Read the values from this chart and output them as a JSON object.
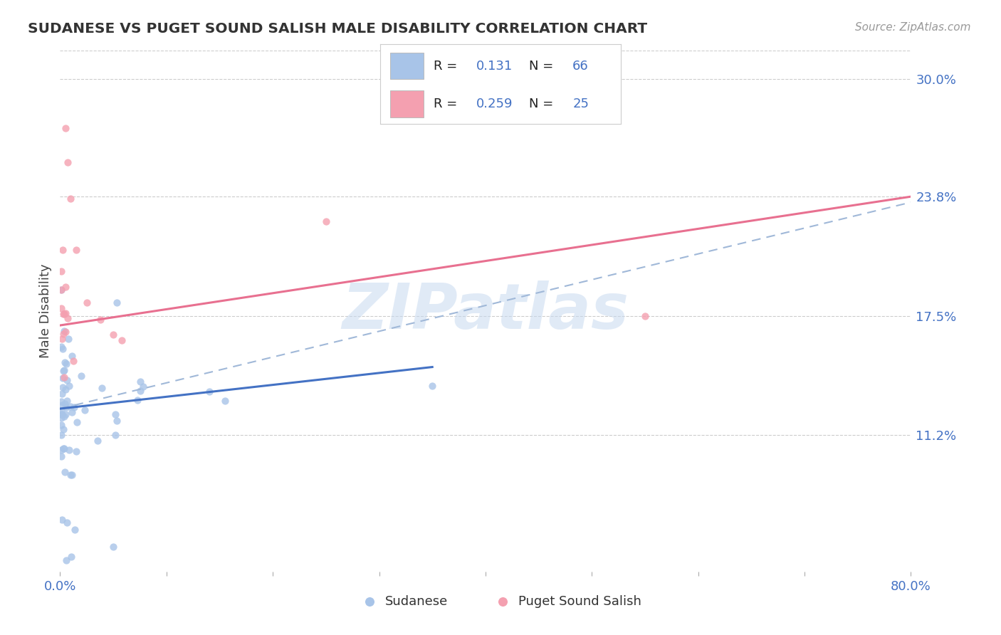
{
  "title": "SUDANESE VS PUGET SOUND SALISH MALE DISABILITY CORRELATION CHART",
  "source": "Source: ZipAtlas.com",
  "ylabel": "Male Disability",
  "xlim": [
    0.0,
    0.8
  ],
  "ylim": [
    0.04,
    0.315
  ],
  "ytick_positions": [
    0.112,
    0.175,
    0.238,
    0.3
  ],
  "ytick_labels": [
    "11.2%",
    "17.5%",
    "23.8%",
    "30.0%"
  ],
  "r_sudanese": 0.131,
  "n_sudanese": 66,
  "r_puget": 0.259,
  "n_puget": 25,
  "sudanese_color": "#a8c4e8",
  "puget_color": "#f4a0b0",
  "sudanese_line_color": "#4472c4",
  "puget_line_color": "#e87090",
  "dashed_line_color": "#a0b8d8",
  "grid_color": "#cccccc",
  "background_color": "#ffffff",
  "tick_color": "#4472c4",
  "blue_line_x0": 0.0,
  "blue_line_x1": 0.35,
  "blue_line_y0": 0.126,
  "blue_line_y1": 0.148,
  "dash_line_x0": 0.0,
  "dash_line_x1": 0.8,
  "dash_line_y0": 0.126,
  "dash_line_y1": 0.235,
  "pink_line_x0": 0.0,
  "pink_line_x1": 0.8,
  "pink_line_y0": 0.17,
  "pink_line_y1": 0.238,
  "watermark": "ZIPatlas",
  "watermark_color": "#c8daf0"
}
